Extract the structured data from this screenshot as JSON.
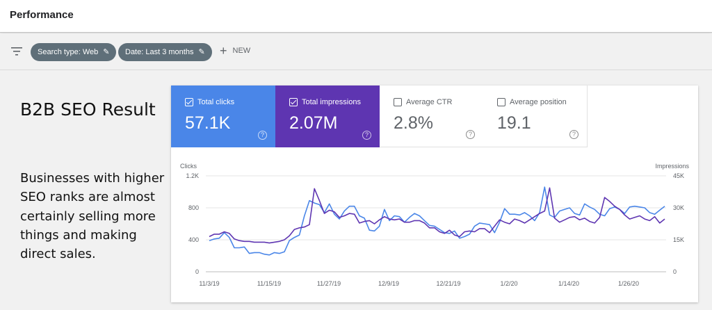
{
  "header": {
    "title": "Performance"
  },
  "filters": {
    "chips": [
      {
        "label": "Search type: Web"
      },
      {
        "label": "Date: Last 3 months"
      }
    ],
    "new_label": "NEW"
  },
  "overlay": {
    "headline": "B2B SEO Result",
    "body": "Businesses with higher SEO ranks are almost certainly selling more things and making direct sales."
  },
  "metrics": [
    {
      "label": "Total clicks",
      "value": "57.1K",
      "checked": true,
      "color": "#4a86e8"
    },
    {
      "label": "Total impressions",
      "value": "2.07M",
      "checked": true,
      "color": "#5e35b1"
    },
    {
      "label": "Average CTR",
      "value": "2.8%",
      "checked": false
    },
    {
      "label": "Average position",
      "value": "19.1",
      "checked": false
    }
  ],
  "chart_data": {
    "type": "line",
    "left_axis_label": "Clicks",
    "right_axis_label": "Impressions",
    "left_ticks": [
      "0",
      "400",
      "800",
      "1.2K"
    ],
    "right_ticks": [
      "0",
      "15K",
      "30K",
      "45K"
    ],
    "left_ylim": [
      0,
      1200
    ],
    "right_ylim": [
      0,
      45000
    ],
    "x_tick_labels": [
      "11/3/19",
      "11/15/19",
      "11/27/19",
      "12/9/19",
      "12/21/19",
      "1/2/20",
      "1/14/20",
      "1/26/20"
    ],
    "grid": true,
    "series": [
      {
        "name": "Total clicks",
        "axis": "left",
        "color": "#4a86e8",
        "values": [
          390,
          410,
          420,
          490,
          430,
          300,
          300,
          310,
          230,
          240,
          240,
          220,
          210,
          240,
          230,
          250,
          390,
          430,
          460,
          700,
          890,
          860,
          840,
          740,
          850,
          720,
          660,
          760,
          820,
          820,
          700,
          670,
          520,
          510,
          570,
          780,
          640,
          700,
          690,
          620,
          680,
          730,
          700,
          640,
          580,
          570,
          530,
          490,
          480,
          510,
          420,
          440,
          470,
          570,
          610,
          600,
          590,
          490,
          620,
          790,
          720,
          720,
          710,
          740,
          700,
          640,
          740,
          1060,
          710,
          680,
          760,
          780,
          800,
          730,
          710,
          850,
          810,
          780,
          720,
          700,
          790,
          810,
          780,
          730,
          810,
          820,
          810,
          800,
          740,
          720,
          770,
          820
        ]
      },
      {
        "name": "Total impressions",
        "axis": "left",
        "color": "#5e35b1",
        "values": [
          440,
          470,
          470,
          500,
          480,
          410,
          390,
          380,
          380,
          370,
          370,
          370,
          360,
          370,
          380,
          400,
          450,
          530,
          550,
          560,
          590,
          1040,
          890,
          730,
          770,
          750,
          680,
          700,
          730,
          720,
          610,
          630,
          640,
          600,
          650,
          690,
          660,
          650,
          660,
          620,
          620,
          640,
          640,
          610,
          550,
          550,
          500,
          480,
          520,
          460,
          440,
          500,
          510,
          500,
          540,
          540,
          490,
          570,
          650,
          620,
          600,
          660,
          640,
          610,
          650,
          690,
          730,
          760,
          1050,
          670,
          620,
          650,
          680,
          690,
          650,
          670,
          630,
          610,
          680,
          930,
          880,
          820,
          780,
          710,
          660,
          680,
          700,
          660,
          640,
          690,
          610,
          660
        ]
      }
    ]
  }
}
